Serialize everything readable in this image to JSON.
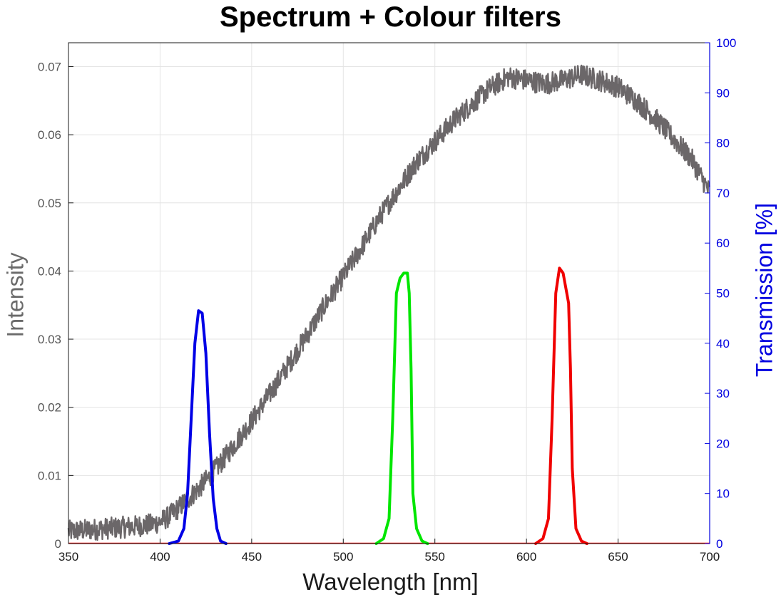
{
  "chart_data": {
    "type": "line",
    "title": "Spectrum + Colour filters",
    "xlabel": "Wavelength [nm]",
    "ylabel_left": "Intensity",
    "ylabel_right": "Transmission [%]",
    "xlim": [
      350,
      700
    ],
    "ylim_left": [
      0,
      0.0735
    ],
    "ylim_right": [
      0,
      100
    ],
    "x_ticks": [
      350,
      400,
      450,
      500,
      550,
      600,
      650,
      700
    ],
    "y_left_ticks": [
      "0",
      "0.01",
      "0.02",
      "0.03",
      "0.04",
      "0.05",
      "0.06",
      "0.07"
    ],
    "y_right_ticks": [
      "0",
      "10",
      "20",
      "30",
      "40",
      "50",
      "60",
      "70",
      "80",
      "90",
      "100"
    ],
    "grid": true,
    "series": [
      {
        "axis": "left",
        "color": "#6b6769",
        "noise": 0.0016,
        "x": [
          350,
          370,
          385,
          395,
          400,
          405,
          410,
          415,
          420,
          425,
          430,
          435,
          440,
          450,
          460,
          470,
          480,
          490,
          500,
          510,
          520,
          530,
          540,
          550,
          560,
          570,
          580,
          590,
          600,
          610,
          620,
          630,
          640,
          650,
          660,
          670,
          680,
          690,
          700
        ],
        "y": [
          0.0018,
          0.0022,
          0.0025,
          0.0028,
          0.0032,
          0.004,
          0.0052,
          0.0065,
          0.0078,
          0.0092,
          0.0108,
          0.0125,
          0.0143,
          0.018,
          0.022,
          0.0262,
          0.0305,
          0.035,
          0.0392,
          0.0435,
          0.048,
          0.052,
          0.056,
          0.059,
          0.062,
          0.0645,
          0.0668,
          0.0685,
          0.068,
          0.0675,
          0.068,
          0.0688,
          0.068,
          0.067,
          0.065,
          0.0625,
          0.0595,
          0.0565,
          0.0515
        ]
      },
      {
        "axis": "right",
        "color": "#0000e6",
        "x": [
          405,
          410,
          413,
          415,
          417,
          419,
          421,
          423,
          425,
          427,
          429,
          431,
          433,
          436
        ],
        "y": [
          0,
          0.5,
          3,
          10,
          25,
          40,
          46.5,
          46,
          38,
          22,
          9,
          3,
          0.5,
          0
        ]
      },
      {
        "axis": "right",
        "color": "#00e600",
        "x": [
          518,
          522,
          525,
          527,
          529,
          531,
          533,
          535,
          536,
          537,
          538,
          540,
          543,
          546
        ],
        "y": [
          0,
          1,
          5,
          25,
          50,
          53,
          54,
          54,
          50,
          35,
          10,
          3,
          0.5,
          0
        ]
      },
      {
        "axis": "right",
        "color": "#f00000",
        "x": [
          605,
          609,
          612,
          614,
          616,
          618,
          620,
          622,
          623,
          624,
          625,
          627,
          630,
          633
        ],
        "y": [
          0,
          1,
          5,
          25,
          50,
          55,
          54,
          50,
          48,
          35,
          15,
          3,
          0.5,
          0
        ]
      }
    ]
  }
}
